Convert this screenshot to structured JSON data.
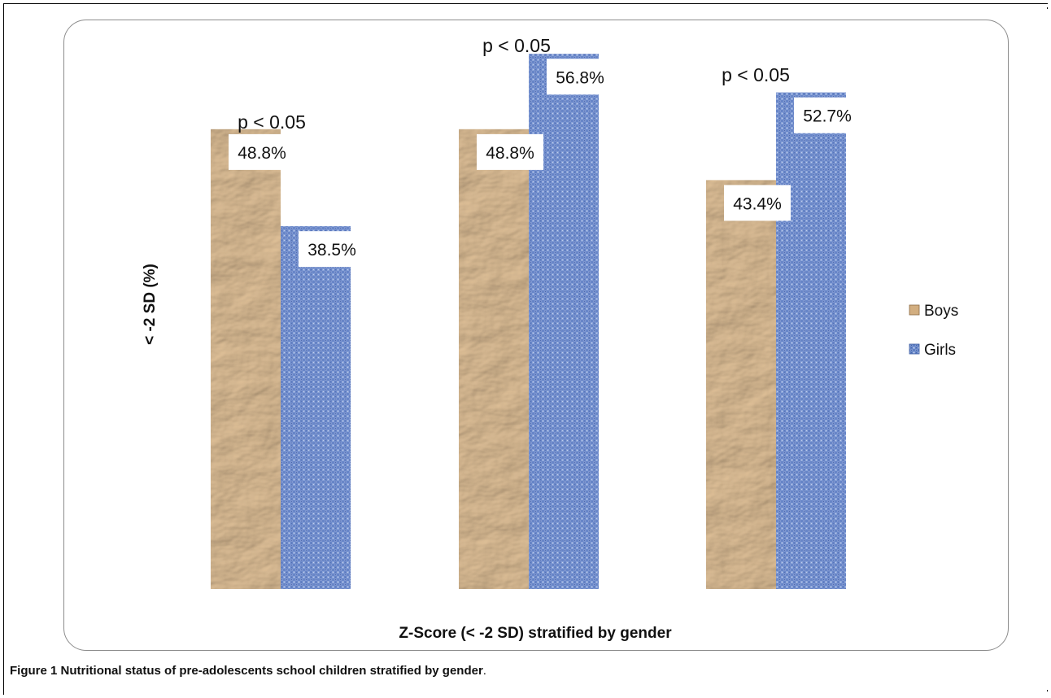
{
  "caption": {
    "label": "Figure 1",
    "text": "Nutritional status of pre-adolescents school children stratified by gender",
    "end": "."
  },
  "chart_data": {
    "type": "bar",
    "categories": [
      "",
      "",
      ""
    ],
    "series": [
      {
        "name": "Boys",
        "values": [
          48.8,
          48.8,
          43.4
        ],
        "labels": [
          "48.8%",
          "48.8%",
          "43.4%"
        ],
        "color": "#c9a476"
      },
      {
        "name": "Girls",
        "values": [
          38.5,
          56.8,
          52.7
        ],
        "labels": [
          "38.5%",
          "56.8%",
          "52.7%"
        ],
        "color": "#5a7cc0"
      }
    ],
    "annotations": [
      "p < 0.05",
      "p < 0.05",
      "p < 0.05"
    ],
    "title": "",
    "xlabel": "Z-Score (< -2 SD) stratified by gender",
    "ylabel": "< -2 SD (%)",
    "ylim": [
      0,
      100
    ],
    "grid": false,
    "legend": "right"
  }
}
